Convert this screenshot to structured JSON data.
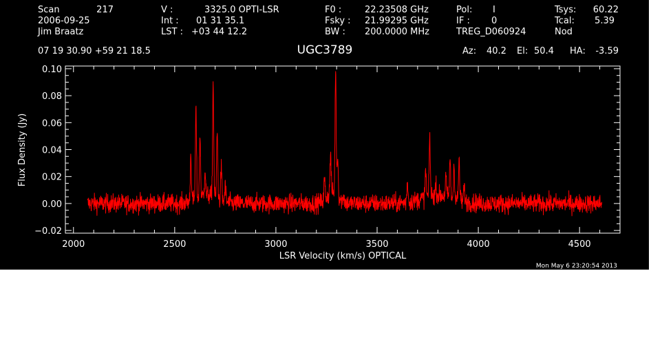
{
  "header": {
    "scan_label": "Scan",
    "scan_number": "217",
    "date": "2006-09-25",
    "observer": "Jim Braatz",
    "v_label": "V   :",
    "v_value": "3325.0 OPTI-LSR",
    "int_label": "Int  :",
    "int_value": "01 31 35.1",
    "lst_label": "LST :",
    "lst_value": "+03 44 12.2",
    "f0_label": "F0   :",
    "f0_value": "22.23508 GHz",
    "fsky_label": "Fsky :",
    "fsky_value": "21.99295 GHz",
    "bw_label": "BW   :",
    "bw_value": "200.0000 MHz",
    "pol_label": "Pol:",
    "pol_value": "I",
    "if_label": "IF :",
    "if_value": "0",
    "session": "TREG_D060924",
    "tsys_label": "Tsys:",
    "tsys_value": "60.22",
    "tcal_label": "Tcal:",
    "tcal_value": "5.39",
    "proc": "Nod",
    "ra_dec": "07 19 30.90  +59 21 18.5",
    "source": "UGC3789",
    "az_label": "Az:",
    "az_value": "40.2",
    "el_label": "El:",
    "el_value": "50.4",
    "ha_label": "HA:",
    "ha_value": "-3.59",
    "timestamp": "Mon May  6 23:20:54 2013"
  },
  "chart_data": {
    "type": "line",
    "xlabel": "LSR Velocity (km/s) OPTICAL",
    "ylabel": "Flux Density (Jy)",
    "xlim": [
      1960,
      4700
    ],
    "ylim": [
      -0.022,
      0.102
    ],
    "x_ticks": [
      2000,
      2500,
      3000,
      3500,
      4000,
      4500
    ],
    "x_tick_labels": [
      "2000",
      "2500",
      "3000",
      "3500",
      "4000",
      "4500"
    ],
    "y_ticks": [
      -0.02,
      0.0,
      0.02,
      0.04,
      0.06,
      0.08,
      0.1
    ],
    "y_tick_labels": [
      "−0.02",
      "0.00",
      "0.02",
      "0.04",
      "0.06",
      "0.08",
      "0.10"
    ],
    "grid": false,
    "colors": {
      "background": "#000000",
      "axes": "#ffffff",
      "line": "#ff0000"
    },
    "series": [
      {
        "x_range": [
          2070,
          4610
        ],
        "baseline": 0.0,
        "noise_rms": 0.0035,
        "peaks": [
          {
            "x": 2580,
            "y": 0.035
          },
          {
            "x": 2605,
            "y": 0.066
          },
          {
            "x": 2625,
            "y": 0.045
          },
          {
            "x": 2650,
            "y": 0.02
          },
          {
            "x": 2690,
            "y": 0.084
          },
          {
            "x": 2710,
            "y": 0.05
          },
          {
            "x": 2730,
            "y": 0.025
          },
          {
            "x": 2750,
            "y": 0.012
          },
          {
            "x": 3240,
            "y": 0.015
          },
          {
            "x": 3270,
            "y": 0.03
          },
          {
            "x": 3295,
            "y": 0.092
          },
          {
            "x": 3305,
            "y": 0.03
          },
          {
            "x": 3335,
            "y": 0.005
          },
          {
            "x": 3650,
            "y": 0.015
          },
          {
            "x": 3740,
            "y": 0.02
          },
          {
            "x": 3760,
            "y": 0.044
          },
          {
            "x": 3790,
            "y": 0.008
          },
          {
            "x": 3840,
            "y": 0.015
          },
          {
            "x": 3860,
            "y": 0.028
          },
          {
            "x": 3880,
            "y": 0.025
          },
          {
            "x": 3905,
            "y": 0.03
          },
          {
            "x": 3930,
            "y": 0.01
          }
        ]
      }
    ]
  }
}
